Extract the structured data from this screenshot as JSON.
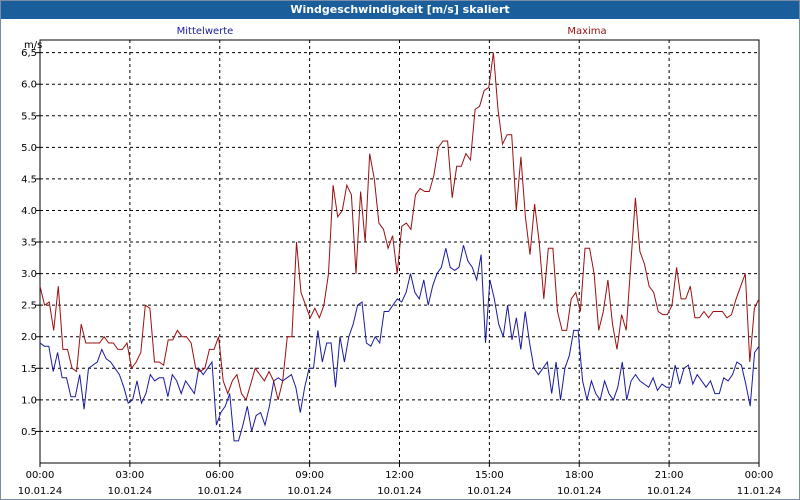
{
  "window": {
    "title": "Windgeschwindigkeit [m/s] skaliert"
  },
  "colors": {
    "mean": "#1a1aa0",
    "max": "#9a1010",
    "grid": "#000000",
    "title_bar": "#1a5f9c"
  },
  "chart_data": {
    "type": "line",
    "ylabel": "m/s",
    "ylim": [
      0,
      6.7
    ],
    "yticks": [
      0.5,
      1.0,
      1.5,
      2.0,
      2.5,
      3.0,
      3.5,
      4.0,
      4.5,
      5.0,
      5.5,
      6.0,
      6.5
    ],
    "ytick_labels": [
      "0.5",
      "1.0",
      "1.5",
      "2.0",
      "2.5",
      "3.0",
      "3.5",
      "4.0",
      "4.5",
      "5.0",
      "5.5",
      "6.0",
      "6,5"
    ],
    "xlim_hours": [
      0,
      24
    ],
    "xticks": [
      {
        "time": "00:00",
        "date": "10.01.24"
      },
      {
        "time": "03:00",
        "date": "10.01.24"
      },
      {
        "time": "06:00",
        "date": "10.01.24"
      },
      {
        "time": "09:00",
        "date": "10.01.24"
      },
      {
        "time": "12:00",
        "date": "10.01.24"
      },
      {
        "time": "15:00",
        "date": "10.01.24"
      },
      {
        "time": "18:00",
        "date": "10.01.24"
      },
      {
        "time": "21:00",
        "date": "10.01.24"
      },
      {
        "time": "00:00",
        "date": "11.01.24"
      }
    ],
    "grid": true,
    "series": [
      {
        "name": "Mittelwerte",
        "color": "#1a1aa0",
        "values": [
          1.9,
          1.85,
          1.85,
          1.45,
          1.75,
          1.35,
          1.35,
          1.05,
          1.05,
          1.4,
          0.85,
          1.5,
          1.55,
          1.6,
          1.8,
          1.65,
          1.6,
          1.5,
          1.4,
          1.2,
          0.95,
          1.0,
          1.3,
          0.95,
          1.1,
          1.4,
          1.3,
          1.35,
          1.35,
          1.05,
          1.4,
          1.3,
          1.1,
          1.3,
          1.2,
          1.1,
          1.5,
          1.4,
          1.5,
          1.6,
          0.6,
          0.8,
          0.9,
          1.1,
          0.35,
          0.35,
          0.6,
          0.9,
          0.5,
          0.75,
          0.8,
          0.6,
          0.9,
          1.3,
          1.35,
          1.3,
          1.35,
          1.4,
          1.2,
          0.8,
          1.2,
          1.5,
          1.5,
          2.1,
          1.6,
          1.9,
          1.9,
          1.2,
          2.0,
          1.6,
          2.0,
          2.2,
          2.5,
          2.55,
          1.9,
          1.85,
          2.0,
          1.9,
          2.4,
          2.4,
          2.5,
          2.6,
          2.55,
          2.7,
          3.0,
          2.7,
          2.6,
          2.9,
          2.5,
          2.8,
          3.0,
          3.1,
          3.4,
          3.1,
          3.05,
          3.1,
          3.45,
          3.2,
          3.1,
          2.9,
          3.3,
          1.9,
          2.9,
          2.6,
          2.2,
          2.0,
          2.5,
          1.95,
          2.3,
          1.8,
          2.4,
          1.9,
          1.5,
          1.4,
          1.5,
          1.6,
          1.1,
          1.6,
          1.0,
          1.5,
          1.7,
          2.1,
          2.1,
          1.3,
          1.0,
          1.3,
          1.1,
          1.0,
          1.3,
          1.1,
          1.0,
          1.2,
          1.6,
          1.0,
          1.3,
          1.4,
          1.3,
          1.25,
          1.2,
          1.35,
          1.15,
          1.25,
          1.2,
          1.2,
          1.55,
          1.25,
          1.5,
          1.55,
          1.25,
          1.4,
          1.3,
          1.2,
          1.3,
          1.1,
          1.1,
          1.35,
          1.3,
          1.4,
          1.6,
          1.55,
          1.25,
          0.9,
          1.75,
          1.85
        ]
      },
      {
        "name": "Maxima",
        "color": "#9a1010",
        "values": [
          2.8,
          2.5,
          2.55,
          2.1,
          2.8,
          1.8,
          1.8,
          1.5,
          1.45,
          2.2,
          1.9,
          1.9,
          1.9,
          1.9,
          2.0,
          1.9,
          1.9,
          1.8,
          1.8,
          1.9,
          1.5,
          1.6,
          1.75,
          2.5,
          2.45,
          1.6,
          1.6,
          1.55,
          1.95,
          1.95,
          2.1,
          2.0,
          2.0,
          1.9,
          1.5,
          1.45,
          1.5,
          1.8,
          1.8,
          2.0,
          1.3,
          1.1,
          1.3,
          1.4,
          1.1,
          1.0,
          1.25,
          1.5,
          1.4,
          1.3,
          1.45,
          1.3,
          1.0,
          1.3,
          2.0,
          2.0,
          3.5,
          2.7,
          2.5,
          2.3,
          2.45,
          2.3,
          2.5,
          3.0,
          4.4,
          3.9,
          4.0,
          4.4,
          4.25,
          3.0,
          4.3,
          3.5,
          4.9,
          4.5,
          3.8,
          3.7,
          3.4,
          3.6,
          3.0,
          3.75,
          3.8,
          3.7,
          4.25,
          4.35,
          4.3,
          4.3,
          4.55,
          5.0,
          5.1,
          5.1,
          4.2,
          4.7,
          4.7,
          4.9,
          4.8,
          5.6,
          5.65,
          5.9,
          5.95,
          6.5,
          5.6,
          5.05,
          5.2,
          5.2,
          4.0,
          4.85,
          3.9,
          3.3,
          4.1,
          3.5,
          2.6,
          3.4,
          3.4,
          2.4,
          2.1,
          2.1,
          2.6,
          2.7,
          2.4,
          3.4,
          3.4,
          3.0,
          2.1,
          2.4,
          2.9,
          2.2,
          1.8,
          2.35,
          2.1,
          3.15,
          4.2,
          3.35,
          3.15,
          2.8,
          2.7,
          2.4,
          2.35,
          2.35,
          2.5,
          3.1,
          2.6,
          2.6,
          2.8,
          2.3,
          2.3,
          2.4,
          2.3,
          2.4,
          2.4,
          2.4,
          2.3,
          2.35,
          2.6,
          2.8,
          3.0,
          1.6,
          2.45,
          2.6
        ]
      }
    ]
  }
}
